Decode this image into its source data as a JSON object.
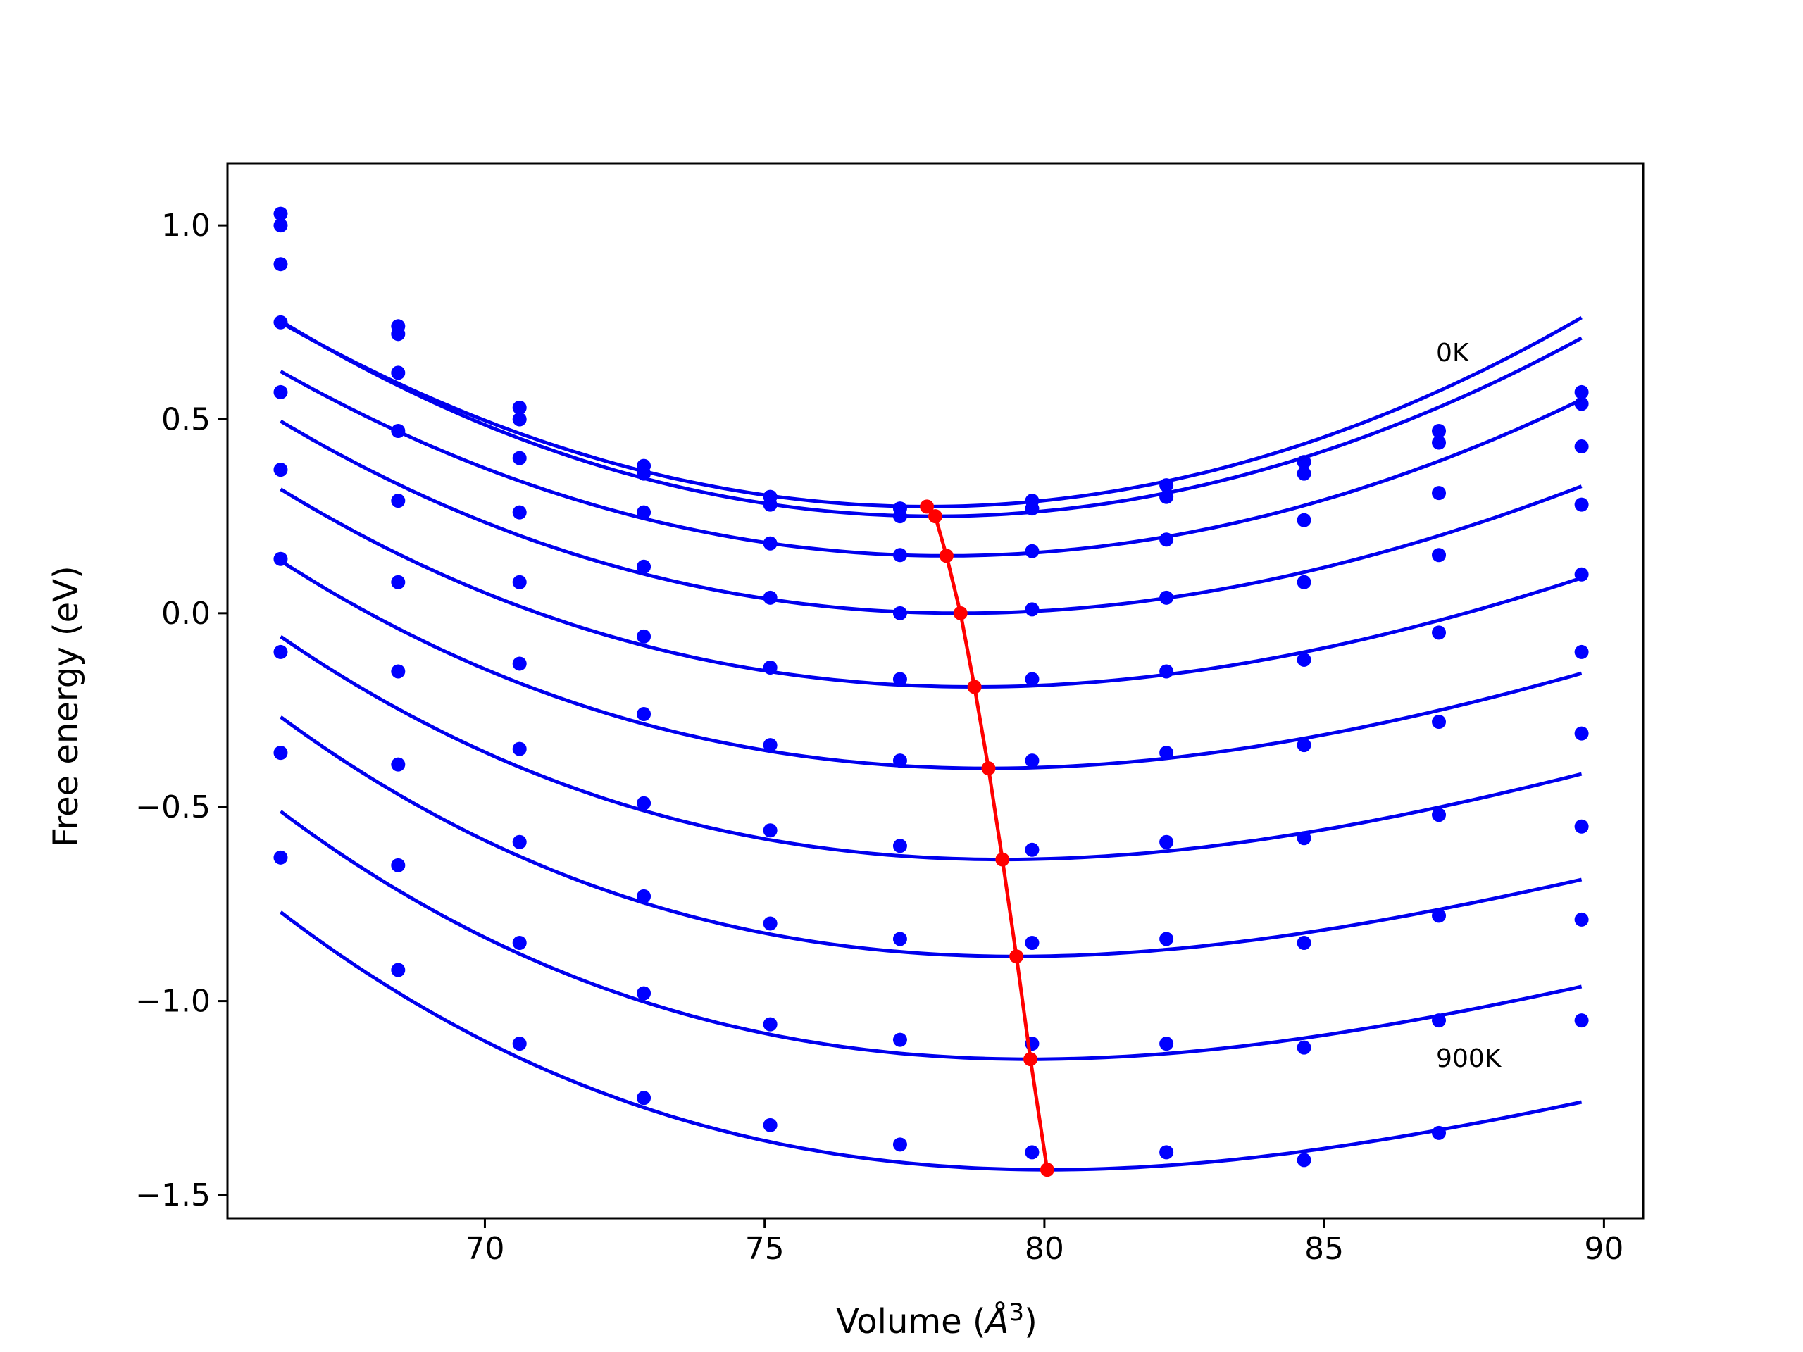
{
  "chart_data": {
    "type": "scatter",
    "title": "",
    "xlabel": "Volume (Å³)",
    "xlabel_text": "Volume (",
    "xlabel_unit": "Å",
    "xlabel_sup": "3",
    "xlabel_close": ")",
    "ylabel": "Free energy (eV)",
    "xlim": [
      65.4,
      90.7
    ],
    "ylim": [
      -1.56,
      1.16
    ],
    "xticks": [
      70,
      75,
      80,
      85,
      90
    ],
    "yticks": [
      1.0,
      0.5,
      0.0,
      -0.5,
      -1.0,
      -1.5
    ],
    "xtick_labels": [
      "70",
      "75",
      "80",
      "85",
      "90"
    ],
    "ytick_labels": [
      "1.0",
      "0.5",
      "0.0",
      "−0.5",
      "−1.0",
      "−1.5"
    ],
    "grid": false,
    "volumes": [
      66.35,
      68.45,
      70.62,
      72.84,
      75.1,
      77.42,
      79.78,
      82.18,
      84.64,
      87.05,
      89.6
    ],
    "series": [
      {
        "values": [
          1.03,
          0.74,
          0.53,
          0.38,
          0.3,
          0.27,
          0.29,
          0.33,
          0.39,
          0.47,
          0.57
        ],
        "fit": {
          "v0": 77.9,
          "e0": 0.275,
          "a": 0.00356,
          "b": 0.0
        }
      },
      {
        "values": [
          1.0,
          0.72,
          0.5,
          0.36,
          0.28,
          0.25,
          0.27,
          0.3,
          0.36,
          0.44,
          0.54
        ],
        "fit": {
          "v0": 78.05,
          "e0": 0.25,
          "a": 0.00356,
          "b": -1e-05
        }
      },
      {
        "values": [
          0.9,
          0.62,
          0.4,
          0.26,
          0.18,
          0.15,
          0.16,
          0.19,
          0.24,
          0.31,
          0.43
        ],
        "fit": {
          "v0": 78.25,
          "e0": 0.148,
          "a": 0.00324,
          "b": -1e-05
        }
      },
      {
        "values": [
          0.75,
          0.47,
          0.26,
          0.12,
          0.04,
          0.0,
          0.01,
          0.04,
          0.08,
          0.15,
          0.28
        ],
        "fit": {
          "v0": 78.5,
          "e0": 0.0,
          "a": 0.00299,
          "b": -3e-05
        }
      },
      {
        "values": [
          0.57,
          0.29,
          0.08,
          -0.06,
          -0.14,
          -0.17,
          -0.17,
          -0.15,
          -0.12,
          -0.05,
          0.1
        ],
        "fit": {
          "v0": 78.75,
          "e0": -0.19,
          "a": 0.00282,
          "b": -4e-05
        }
      },
      {
        "values": [
          0.37,
          0.08,
          -0.13,
          -0.26,
          -0.34,
          -0.38,
          -0.38,
          -0.36,
          -0.34,
          -0.28,
          -0.1
        ],
        "fit": {
          "v0": 79.0,
          "e0": -0.4,
          "a": 0.00271,
          "b": -5e-05
        }
      },
      {
        "values": [
          0.14,
          -0.15,
          -0.35,
          -0.49,
          -0.56,
          -0.6,
          -0.61,
          -0.59,
          -0.58,
          -0.52,
          -0.31
        ],
        "fit": {
          "v0": 79.25,
          "e0": -0.635,
          "a": 0.00268,
          "b": -6e-05
        }
      },
      {
        "values": [
          -0.1,
          -0.39,
          -0.59,
          -0.73,
          -0.8,
          -0.84,
          -0.85,
          -0.84,
          -0.85,
          -0.78,
          -0.55
        ],
        "fit": {
          "v0": 79.5,
          "e0": -0.885,
          "a": 0.00265,
          "b": -7e-05
        }
      },
      {
        "values": [
          -0.36,
          -0.65,
          -0.85,
          -0.98,
          -1.06,
          -1.1,
          -1.11,
          -1.11,
          -1.12,
          -1.05,
          -0.79
        ],
        "fit": {
          "v0": 79.75,
          "e0": -1.15,
          "a": 0.00262,
          "b": -7e-05
        }
      },
      {
        "values": [
          -0.63,
          -0.92,
          -1.11,
          -1.25,
          -1.32,
          -1.37,
          -1.39,
          -1.39,
          -1.41,
          -1.34,
          -1.05
        ],
        "fit": {
          "v0": 80.05,
          "e0": -1.435,
          "a": 0.00258,
          "b": -7e-05
        }
      }
    ],
    "minima": {
      "x": [
        77.9,
        78.05,
        78.25,
        78.5,
        78.75,
        79.0,
        79.25,
        79.5,
        79.75,
        80.05
      ],
      "y": [
        0.275,
        0.25,
        0.148,
        0.0,
        -0.19,
        -0.4,
        -0.635,
        -0.885,
        -1.15,
        -1.435
      ]
    },
    "annotations": [
      {
        "text": "0K",
        "x": 87.0,
        "y": 0.65
      },
      {
        "text": "900K",
        "x": 87.0,
        "y": -1.17
      }
    ],
    "colors": {
      "points": "#0000ff",
      "fit": "#0000ee",
      "minima": "#ff0000",
      "axes": "#000000"
    }
  }
}
